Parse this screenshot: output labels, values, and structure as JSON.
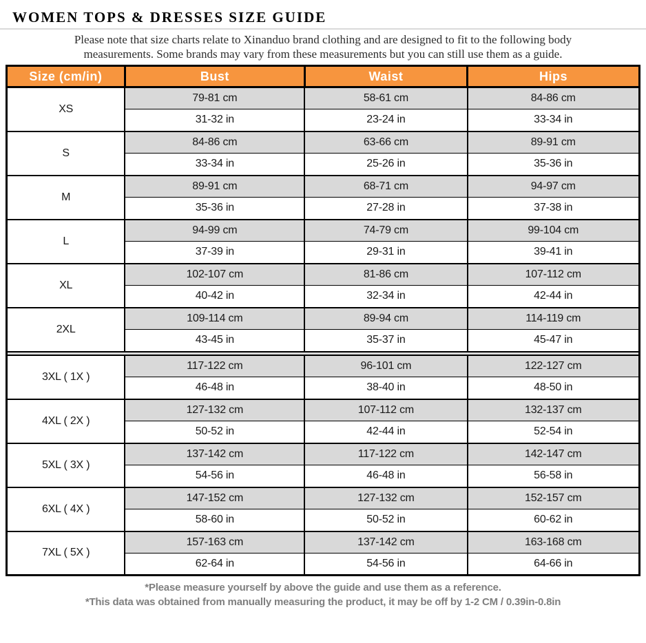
{
  "header": {
    "title": "WOMEN TOPS & DRESSES SIZE GUIDE",
    "note_lines": [
      "Please note that size charts relate to  Xinanduo brand clothing and are designed to fit to the following body",
      "measurements. Some brands may vary from these measurements but you can still use them as a guide."
    ]
  },
  "size_table": {
    "columns": [
      "Size (cm/in)",
      "Bust",
      "Waist",
      "Hips"
    ],
    "rows": [
      {
        "size": "XS",
        "bust_cm": "79-81 cm",
        "waist_cm": "58-61 cm",
        "hips_cm": "84-86 cm",
        "bust_in": "31-32 in",
        "waist_in": "23-24 in",
        "hips_in": "33-34 in"
      },
      {
        "size": "S",
        "bust_cm": "84-86 cm",
        "waist_cm": "63-66 cm",
        "hips_cm": "89-91 cm",
        "bust_in": "33-34 in",
        "waist_in": "25-26 in",
        "hips_in": "35-36 in"
      },
      {
        "size": "M",
        "bust_cm": "89-91 cm",
        "waist_cm": "68-71 cm",
        "hips_cm": "94-97 cm",
        "bust_in": "35-36 in",
        "waist_in": "27-28 in",
        "hips_in": "37-38 in"
      },
      {
        "size": "L",
        "bust_cm": "94-99 cm",
        "waist_cm": "74-79 cm",
        "hips_cm": "99-104 cm",
        "bust_in": "37-39 in",
        "waist_in": "29-31 in",
        "hips_in": "39-41 in"
      },
      {
        "size": "XL",
        "bust_cm": "102-107 cm",
        "waist_cm": "81-86 cm",
        "hips_cm": "107-112 cm",
        "bust_in": "40-42 in",
        "waist_in": "32-34 in",
        "hips_in": "42-44 in"
      },
      {
        "size": "2XL",
        "bust_cm": "109-114 cm",
        "waist_cm": "89-94 cm",
        "hips_cm": "114-119 cm",
        "bust_in": "43-45 in",
        "waist_in": "35-37 in",
        "hips_in": "45-47 in"
      },
      {
        "size": "3XL ( 1X )",
        "separator_before": true,
        "bust_cm": "117-122 cm",
        "waist_cm": "96-101 cm",
        "hips_cm": "122-127 cm",
        "bust_in": "46-48 in",
        "waist_in": "38-40 in",
        "hips_in": "48-50 in"
      },
      {
        "size": "4XL ( 2X )",
        "bust_cm": "127-132 cm",
        "waist_cm": "107-112 cm",
        "hips_cm": "132-137 cm",
        "bust_in": "50-52 in",
        "waist_in": "42-44 in",
        "hips_in": "52-54 in"
      },
      {
        "size": "5XL ( 3X )",
        "bust_cm": "137-142 cm",
        "waist_cm": "117-122 cm",
        "hips_cm": "142-147 cm",
        "bust_in": "54-56 in",
        "waist_in": "46-48 in",
        "hips_in": "56-58 in"
      },
      {
        "size": "6XL ( 4X )",
        "bust_cm": "147-152 cm",
        "waist_cm": "127-132 cm",
        "hips_cm": "152-157 cm",
        "bust_in": "58-60 in",
        "waist_in": "50-52 in",
        "hips_in": "60-62 in"
      },
      {
        "size": "7XL ( 5X )",
        "bust_cm": "157-163 cm",
        "waist_cm": "137-142 cm",
        "hips_cm": "163-168 cm",
        "bust_in": "62-64 in",
        "waist_in": "54-56 in",
        "hips_in": "64-66 in"
      }
    ]
  },
  "footnotes": [
    "*Please measure yourself by above the guide and use them as a reference.",
    "*This data was obtained from manually measuring the product, it may be off by 1-2 CM / 0.39in-0.8in"
  ],
  "colors": {
    "accent_orange": "#f7953e",
    "row_gray": "#d9d9d9",
    "border_black": "#000000",
    "footnote_gray": "#7f7f7f",
    "title_rule_gray": "#d9d9d9"
  }
}
